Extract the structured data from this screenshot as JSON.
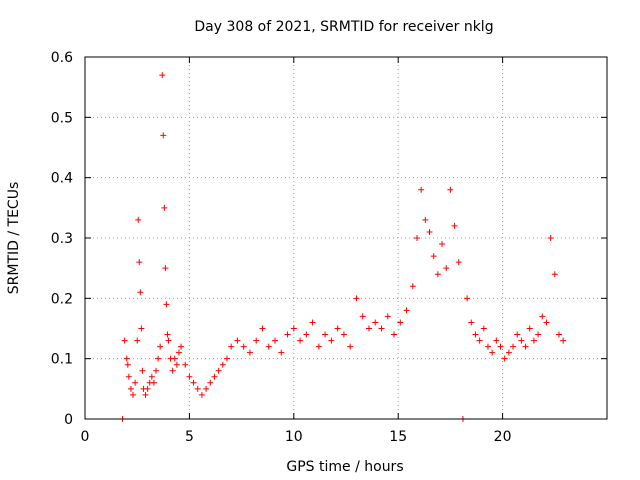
{
  "chart_data": {
    "type": "scatter",
    "title": "Day 308 of 2021, SRMTID for receiver nklg",
    "xlabel": "GPS time / hours",
    "ylabel": "SRMTID / TECUs",
    "xlim": [
      0,
      25
    ],
    "ylim": [
      0,
      0.6
    ],
    "x_ticks": [
      0,
      5,
      10,
      15,
      20
    ],
    "y_ticks": [
      0,
      0.1,
      0.2,
      0.3,
      0.4,
      0.5,
      0.6
    ],
    "x_tick_labels": [
      "0",
      "5",
      "10",
      "15",
      "20"
    ],
    "y_tick_labels": [
      "0",
      "0.1",
      "0.2",
      "0.3",
      "0.4",
      "0.5",
      "0.6"
    ],
    "grid": true,
    "marker": "plus",
    "color": "#ff0000",
    "series": [
      {
        "name": "SRMTID",
        "x": [
          1.8,
          1.9,
          2.0,
          2.05,
          2.1,
          2.2,
          2.3,
          2.4,
          2.5,
          2.55,
          2.6,
          2.65,
          2.7,
          2.75,
          2.8,
          2.9,
          3.0,
          3.1,
          3.2,
          3.3,
          3.4,
          3.5,
          3.6,
          3.7,
          3.75,
          3.8,
          3.85,
          3.9,
          3.95,
          4.0,
          4.1,
          4.2,
          4.3,
          4.4,
          4.5,
          4.6,
          4.8,
          5.0,
          5.2,
          5.4,
          5.6,
          5.8,
          6.0,
          6.2,
          6.4,
          6.6,
          6.8,
          7.0,
          7.3,
          7.6,
          7.9,
          8.2,
          8.5,
          8.8,
          9.1,
          9.4,
          9.7,
          10.0,
          10.3,
          10.6,
          10.9,
          11.2,
          11.5,
          11.8,
          12.1,
          12.4,
          12.7,
          13.0,
          13.3,
          13.6,
          13.9,
          14.2,
          14.5,
          14.8,
          15.1,
          15.4,
          15.7,
          15.9,
          16.1,
          16.3,
          16.5,
          16.7,
          16.9,
          17.1,
          17.3,
          17.5,
          17.7,
          17.9,
          18.1,
          18.3,
          18.5,
          18.7,
          18.9,
          19.1,
          19.3,
          19.5,
          19.7,
          19.9,
          20.1,
          20.3,
          20.5,
          20.7,
          20.9,
          21.1,
          21.3,
          21.5,
          21.7,
          21.9,
          22.1,
          22.3,
          22.5,
          22.7,
          22.9
        ],
        "y": [
          0.0,
          0.13,
          0.1,
          0.09,
          0.07,
          0.05,
          0.04,
          0.06,
          0.13,
          0.33,
          0.26,
          0.21,
          0.15,
          0.08,
          0.05,
          0.04,
          0.05,
          0.06,
          0.07,
          0.06,
          0.08,
          0.1,
          0.12,
          0.57,
          0.47,
          0.35,
          0.25,
          0.19,
          0.14,
          0.13,
          0.1,
          0.08,
          0.1,
          0.09,
          0.11,
          0.12,
          0.09,
          0.07,
          0.06,
          0.05,
          0.04,
          0.05,
          0.06,
          0.07,
          0.08,
          0.09,
          0.1,
          0.12,
          0.13,
          0.12,
          0.11,
          0.13,
          0.15,
          0.12,
          0.13,
          0.11,
          0.14,
          0.15,
          0.13,
          0.14,
          0.16,
          0.12,
          0.14,
          0.13,
          0.15,
          0.14,
          0.12,
          0.2,
          0.17,
          0.15,
          0.16,
          0.15,
          0.17,
          0.14,
          0.16,
          0.18,
          0.22,
          0.3,
          0.38,
          0.33,
          0.31,
          0.27,
          0.24,
          0.29,
          0.25,
          0.38,
          0.32,
          0.26,
          0.0,
          0.2,
          0.16,
          0.14,
          0.13,
          0.15,
          0.12,
          0.11,
          0.13,
          0.12,
          0.1,
          0.11,
          0.12,
          0.14,
          0.13,
          0.12,
          0.15,
          0.13,
          0.14,
          0.17,
          0.16,
          0.3,
          0.24,
          0.14,
          0.13
        ]
      }
    ]
  }
}
